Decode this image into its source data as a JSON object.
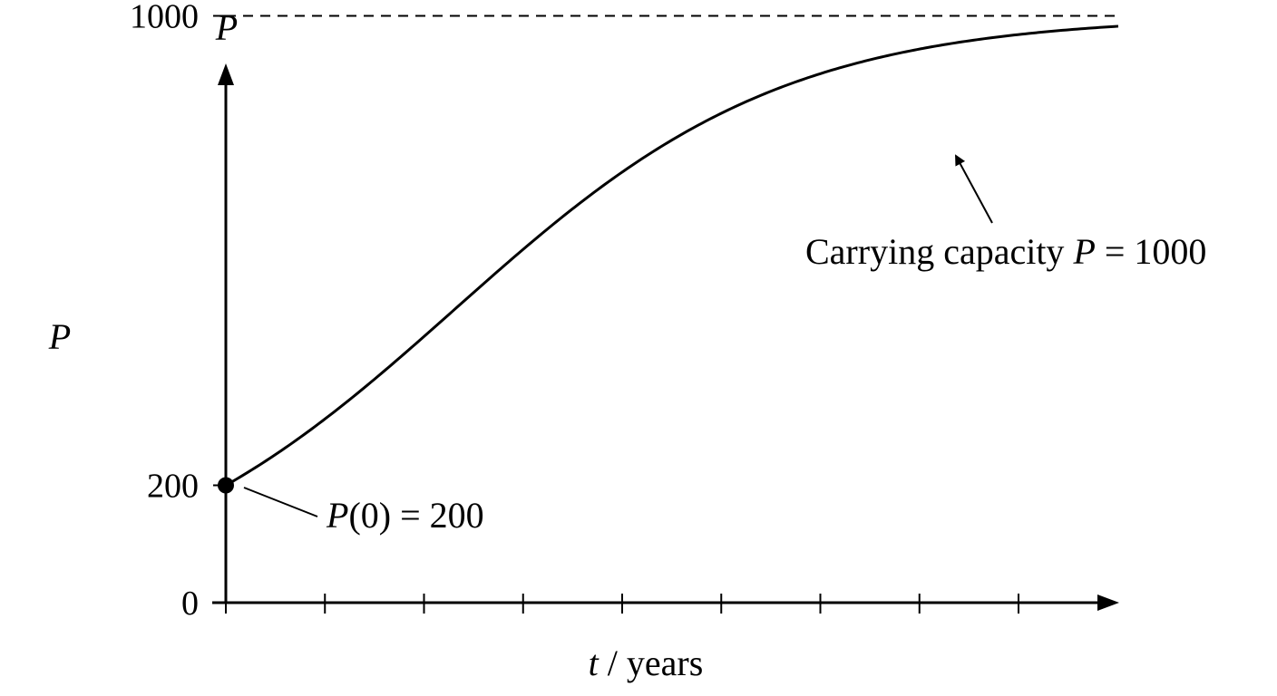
{
  "chart_data": {
    "type": "line",
    "model": "logistic",
    "xlabel": {
      "var": "t",
      "rest": " / years"
    },
    "ylabel_top": "P",
    "ylabel_side": "P",
    "yticks": [
      0,
      200,
      1000
    ],
    "ylim": [
      0,
      1200
    ],
    "x_tick_count": 9,
    "x_tick_labels": [],
    "series": [
      {
        "curve": "logistic",
        "P0": 200,
        "K": 1000,
        "color": "#000000"
      }
    ],
    "reference_lines": [
      {
        "y": 1000,
        "style": "dashed"
      }
    ],
    "initial_point": {
      "x": 0,
      "y": 200
    },
    "annotations": {
      "initial": {
        "parts": [
          "P",
          "(0) = 200"
        ]
      },
      "capacity": {
        "parts": [
          "Carrying capacity ",
          "P",
          " = 1000"
        ]
      }
    }
  }
}
